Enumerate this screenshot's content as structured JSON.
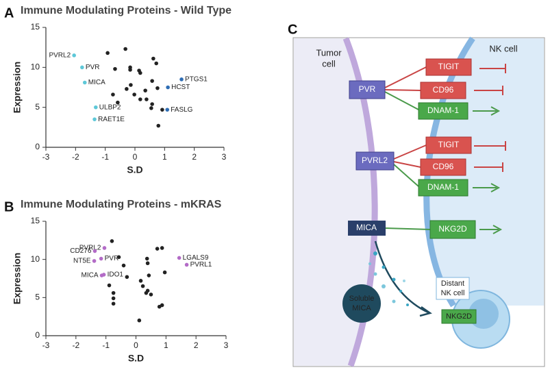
{
  "chart_data": [
    {
      "type": "scatter",
      "panel": "A",
      "title": "Immune Modulating Proteins - Wild Type",
      "x_label": "S.D",
      "y_label": "Expression",
      "xlim": [
        -3,
        3
      ],
      "xticks": [
        -3,
        -2,
        -1,
        0,
        1,
        2,
        3
      ],
      "ylim": [
        0,
        15
      ],
      "yticks": [
        0,
        5,
        10,
        15
      ],
      "x": [
        -0.92,
        -0.67,
        -0.32,
        -0.16,
        -0.16,
        0.14,
        0.18,
        0.62,
        0.72,
        0.58,
        -0.14,
        -0.02,
        0.18,
        -0.28,
        -0.74,
        0.35,
        0.39,
        0.76,
        0.92,
        0.58,
        0.55,
        0.79,
        -0.58,
        -2.05,
        -1.78,
        -1.69,
        -1.32,
        -1.36,
        1.57,
        1.11,
        1.09
      ],
      "values": [
        11.8,
        9.8,
        12.3,
        10.0,
        9.7,
        9.6,
        9.3,
        11.1,
        10.5,
        8.3,
        7.8,
        6.6,
        6.0,
        7.3,
        6.6,
        7.1,
        6.0,
        7.4,
        4.7,
        5.4,
        4.9,
        2.7,
        5.6,
        11.5,
        10.0,
        8.1,
        5.0,
        3.5,
        8.5,
        7.5,
        4.7
      ],
      "labels": [
        null,
        null,
        null,
        null,
        null,
        null,
        null,
        null,
        null,
        null,
        null,
        null,
        null,
        null,
        null,
        null,
        null,
        null,
        null,
        null,
        null,
        null,
        null,
        "PVRL2",
        "PVR",
        "MICA",
        "ULBP2",
        "RAET1E",
        "PTGS1",
        "HCST",
        "FASLG"
      ],
      "colors": [
        "#222222",
        "#222222",
        "#222222",
        "#222222",
        "#222222",
        "#222222",
        "#222222",
        "#222222",
        "#222222",
        "#222222",
        "#222222",
        "#222222",
        "#222222",
        "#222222",
        "#222222",
        "#222222",
        "#222222",
        "#222222",
        "#222222",
        "#222222",
        "#222222",
        "#222222",
        "#222222",
        "#5ec8d8",
        "#5ec8d8",
        "#5ec8d8",
        "#5ec8d8",
        "#5ec8d8",
        "#2e6db4",
        "#2e6db4",
        "#2e6db4"
      ]
    },
    {
      "type": "scatter",
      "panel": "B",
      "title": "Immune Modulating Proteins - mKRAS",
      "x_label": "S.D",
      "y_label": "Expression",
      "xlim": [
        -3,
        3
      ],
      "xticks": [
        -3,
        -2,
        -1,
        0,
        1,
        2,
        3
      ],
      "ylim": [
        0,
        15
      ],
      "yticks": [
        0,
        5,
        10,
        15
      ],
      "x": [
        -0.8,
        -0.57,
        -0.41,
        -0.3,
        -0.89,
        -0.75,
        -0.75,
        -0.75,
        0.16,
        0.23,
        0.37,
        0.39,
        0.43,
        0.34,
        0.5,
        0.11,
        0.71,
        0.87,
        0.96,
        0.78,
        0.87,
        0.39,
        -1.05,
        -1.37,
        -1.39,
        -1.16,
        -1.14,
        -1.07,
        1.44,
        1.69
      ],
      "values": [
        12.4,
        10.3,
        9.2,
        7.7,
        6.6,
        4.9,
        4.2,
        5.6,
        7.2,
        6.5,
        10.1,
        9.5,
        7.9,
        5.6,
        5.4,
        2.0,
        11.4,
        11.5,
        8.3,
        3.8,
        4.0,
        5.9,
        11.5,
        11.1,
        9.8,
        10.1,
        7.9,
        8.0,
        10.2,
        9.3
      ],
      "labels": [
        null,
        null,
        null,
        null,
        null,
        null,
        null,
        null,
        null,
        null,
        null,
        null,
        null,
        null,
        null,
        null,
        null,
        null,
        null,
        null,
        null,
        null,
        "PVRL2",
        "CD276",
        "NT5E",
        "PVR",
        "MICA",
        "IDO1",
        "LGALS9",
        "PVRL1"
      ],
      "colors": [
        "#222222",
        "#222222",
        "#222222",
        "#222222",
        "#222222",
        "#222222",
        "#222222",
        "#222222",
        "#222222",
        "#222222",
        "#222222",
        "#222222",
        "#222222",
        "#222222",
        "#222222",
        "#222222",
        "#222222",
        "#222222",
        "#222222",
        "#222222",
        "#222222",
        "#222222",
        "#b36bc7",
        "#b36bc7",
        "#b36bc7",
        "#b36bc7",
        "#b36bc7",
        "#b36bc7",
        "#b36bc7",
        "#b36bc7"
      ]
    }
  ],
  "diagram": {
    "panel": "C",
    "tumor_cell": [
      "Tumor",
      "cell"
    ],
    "nk_cell": "NK cell",
    "ligands": [
      "PVR",
      "PVRL2",
      "MICA"
    ],
    "receptors": [
      "TIGIT",
      "CD96",
      "DNAM-1",
      "TIGIT",
      "CD96",
      "DNAM-1",
      "NKG2D"
    ],
    "soluble": [
      "Soluble",
      "MICA"
    ],
    "distant_cell": [
      "Distant",
      "NK cell"
    ],
    "distant_receptor": "NKG2D"
  }
}
